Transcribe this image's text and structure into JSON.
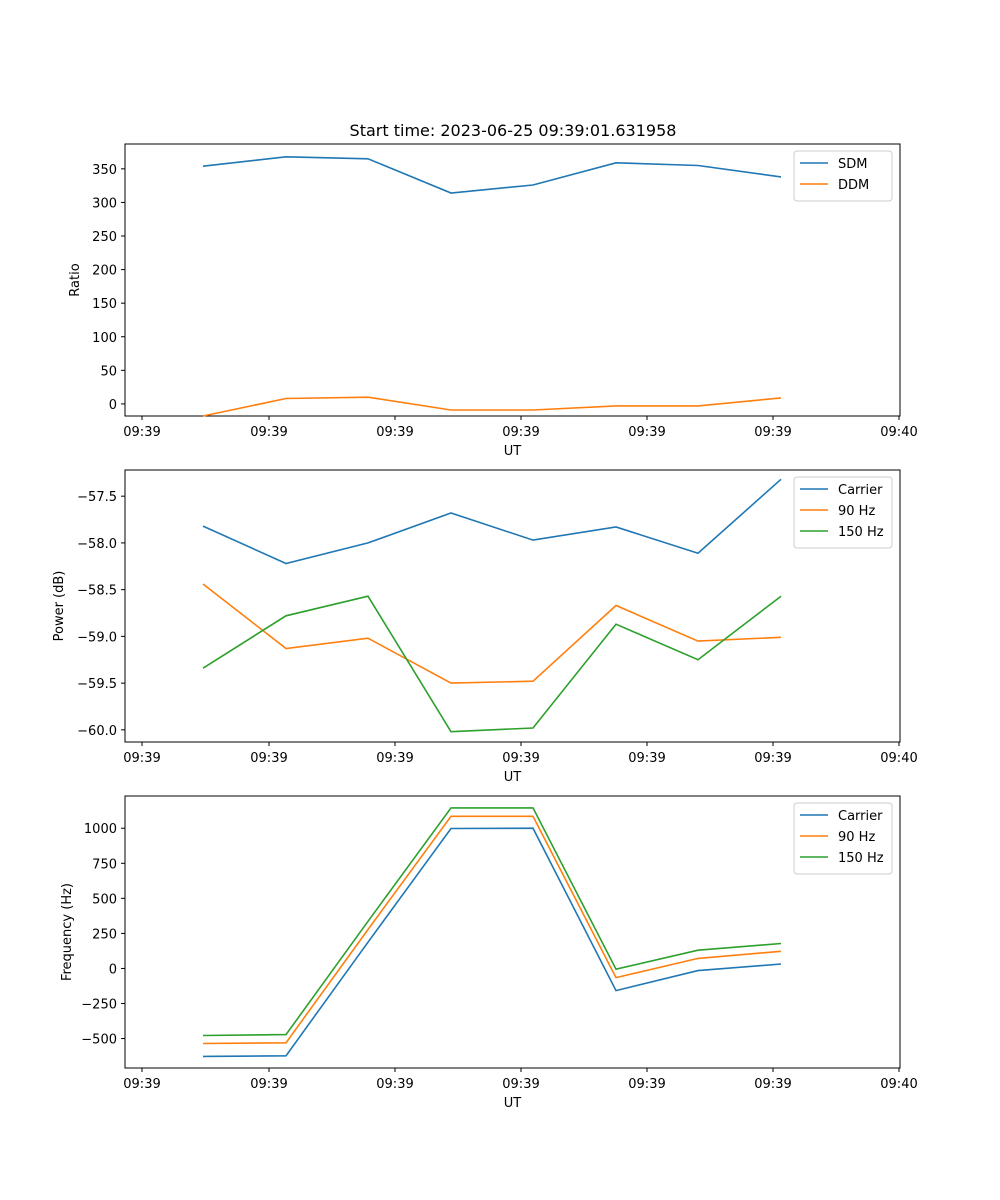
{
  "figure": {
    "title": "Start time: 2023-06-25 09:39:01.631958"
  },
  "chart_data": [
    {
      "type": "line",
      "xlabel": "UT",
      "ylabel": "Ratio",
      "x": [
        1,
        2,
        3,
        4,
        5,
        6,
        7,
        8
      ],
      "xlim": [
        0.8,
        9.3
      ],
      "xticks": [
        1,
        2.5,
        4,
        5.5,
        7,
        8.5,
        10
      ],
      "xticks_values": [
        0.8,
        2.3,
        3.8,
        5.3,
        6.8,
        8.3,
        9.8
      ],
      "xtick_labels": [
        "09:39",
        "09:39",
        "09:39",
        "09:39",
        "09:39",
        "09:39",
        "09:40"
      ],
      "ylim": [
        -18,
        387
      ],
      "yticks": [
        0,
        50,
        100,
        150,
        200,
        250,
        300,
        350
      ],
      "ytick_labels": [
        "0",
        "50",
        "100",
        "150",
        "200",
        "250",
        "300",
        "350"
      ],
      "legend": "upper right",
      "grid": false,
      "series": [
        {
          "name": "SDM",
          "color": "#1f77b4",
          "values": [
            354,
            368,
            365,
            314,
            326,
            359,
            355,
            338
          ]
        },
        {
          "name": "DDM",
          "color": "#ff7f0e",
          "values": [
            -18,
            8,
            10,
            -9,
            -9,
            -3,
            -3,
            9
          ]
        }
      ]
    },
    {
      "type": "line",
      "xlabel": "UT",
      "ylabel": "Power (dB)",
      "x": [
        1,
        2,
        3,
        4,
        5,
        6,
        7,
        8
      ],
      "xlim": [
        0.8,
        9.3
      ],
      "xtick_labels": [
        "09:39",
        "09:39",
        "09:39",
        "09:39",
        "09:39",
        "09:39",
        "09:40"
      ],
      "ylim": [
        -60.13,
        -57.22
      ],
      "yticks": [
        -60.0,
        -59.5,
        -59.0,
        -58.5,
        -58.0,
        -57.5
      ],
      "ytick_labels": [
        "−60.0",
        "−59.5",
        "−59.0",
        "−58.5",
        "−58.0",
        "−57.5"
      ],
      "legend": "upper right",
      "grid": false,
      "series": [
        {
          "name": "Carrier",
          "color": "#1f77b4",
          "values": [
            -57.82,
            -58.22,
            -58.0,
            -57.68,
            -57.97,
            -57.83,
            -58.11,
            -57.32
          ]
        },
        {
          "name": "90 Hz",
          "color": "#ff7f0e",
          "values": [
            -58.44,
            -59.13,
            -59.02,
            -59.5,
            -59.48,
            -58.67,
            -59.05,
            -59.01
          ]
        },
        {
          "name": "150 Hz",
          "color": "#2ca02c",
          "values": [
            -59.34,
            -58.78,
            -58.57,
            -60.02,
            -59.98,
            -58.87,
            -59.25,
            -58.57
          ]
        }
      ]
    },
    {
      "type": "line",
      "xlabel": "UT",
      "ylabel": "Frequency (Hz)",
      "x": [
        1,
        2,
        3,
        4,
        5,
        6,
        7,
        8
      ],
      "xlim": [
        0.8,
        9.3
      ],
      "xtick_labels": [
        "09:39",
        "09:39",
        "09:39",
        "09:39",
        "09:39",
        "09:39",
        "09:40"
      ],
      "ylim": [
        -710,
        1230
      ],
      "yticks": [
        -500,
        -250,
        0,
        250,
        500,
        750,
        1000
      ],
      "ytick_labels": [
        "−500",
        "−250",
        "0",
        "250",
        "500",
        "750",
        "1000"
      ],
      "legend": "upper right",
      "grid": false,
      "series": [
        {
          "name": "Carrier",
          "color": "#1f77b4",
          "values": [
            -627,
            -623,
            null,
            998,
            1000,
            -158,
            -15,
            32
          ]
        },
        {
          "name": "90 Hz",
          "color": "#ff7f0e",
          "values": [
            -535,
            -530,
            null,
            1085,
            1085,
            -65,
            72,
            122
          ]
        },
        {
          "name": "150 Hz",
          "color": "#2ca02c",
          "values": [
            -478,
            -472,
            null,
            1145,
            1145,
            -5,
            130,
            178
          ]
        }
      ]
    }
  ]
}
